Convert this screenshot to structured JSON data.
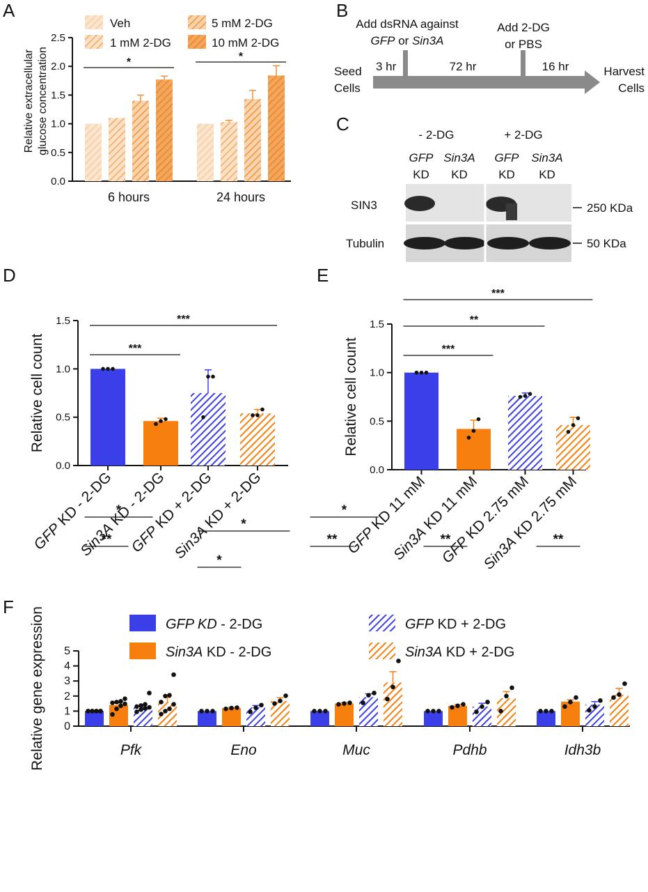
{
  "panels": {
    "a": "A",
    "b": "B",
    "c": "C",
    "d": "D",
    "e": "E",
    "f": "F"
  },
  "colors": {
    "orange_light": "#f6cfa4",
    "orange_mid": "#f3b070",
    "orange_dark": "#ef9b4a",
    "orange": "#f77f0e",
    "blue": "#3b3fe8",
    "gray": "#8a8a8a"
  },
  "chart_data": [
    {
      "id": "A",
      "type": "bar",
      "ylabel": "Relative extracellular glucose concentration",
      "ylim": [
        0,
        2.5
      ],
      "yticks": [
        "0.0",
        "0.5",
        "1.0",
        "1.5",
        "2.0",
        "2.5"
      ],
      "categories": [
        "6 hours",
        "24 hours"
      ],
      "series": [
        {
          "name": "Veh",
          "values": [
            1.0,
            1.0
          ],
          "errors": [
            0,
            0
          ]
        },
        {
          "name": "1 mM 2-DG",
          "values": [
            1.1,
            1.03
          ],
          "errors": [
            0,
            0.03
          ]
        },
        {
          "name": "5 mM 2-DG",
          "values": [
            1.4,
            1.43
          ],
          "errors": [
            0.1,
            0.15
          ]
        },
        {
          "name": "10 mM 2-DG",
          "values": [
            1.77,
            1.84
          ],
          "errors": [
            0.06,
            0.17
          ]
        }
      ],
      "significance": [
        {
          "group": "6 hours",
          "label": "*"
        },
        {
          "group": "24 hours",
          "label": "*"
        }
      ]
    },
    {
      "id": "D",
      "type": "bar",
      "ylabel": "Relative cell count",
      "ylim": [
        0,
        1.5
      ],
      "yticks": [
        "0.0",
        "0.5",
        "1.0",
        "1.5"
      ],
      "categories": [
        {
          "italic": "GFP",
          "rest": " KD - 2-DG"
        },
        {
          "italic": "Sin3A",
          "rest": " KD - 2-DG"
        },
        {
          "italic": "GFP",
          "rest": " KD + 2-DG"
        },
        {
          "italic": "Sin3A",
          "rest": " KD + 2-DG"
        }
      ],
      "values": [
        1.0,
        0.46,
        0.75,
        0.54
      ],
      "errors": [
        0,
        0.03,
        0.24,
        0.04
      ],
      "points": [
        [
          1.0,
          1.0,
          1.0
        ],
        [
          0.43,
          0.46,
          0.48
        ],
        [
          0.5,
          0.92,
          0.92
        ],
        [
          0.52,
          0.52,
          0.58
        ]
      ],
      "significance": [
        {
          "from": 0,
          "to": 1,
          "label": "***"
        },
        {
          "from": 0,
          "to": 3,
          "label": "***"
        }
      ]
    },
    {
      "id": "E",
      "type": "bar",
      "ylabel": "Relative cell count",
      "ylim": [
        0,
        1.5
      ],
      "yticks": [
        "0.0",
        "0.5",
        "1.0",
        "1.5"
      ],
      "categories": [
        {
          "italic": "GFP",
          "rest": " KD 11 mM"
        },
        {
          "italic": "Sin3A",
          "rest": " KD 11 mM"
        },
        {
          "italic": "GFP",
          "rest": " KD 2.75 mM"
        },
        {
          "italic": "Sin3A",
          "rest": " KD 2.75 mM"
        }
      ],
      "values": [
        1.0,
        0.42,
        0.76,
        0.46
      ],
      "errors": [
        0,
        0.09,
        0.03,
        0.08
      ],
      "points": [
        [
          1.0,
          1.0,
          1.0
        ],
        [
          0.33,
          0.4,
          0.52
        ],
        [
          0.75,
          0.76,
          0.78
        ],
        [
          0.39,
          0.46,
          0.53
        ]
      ],
      "significance": [
        {
          "from": 0,
          "to": 1,
          "label": "***"
        },
        {
          "from": 0,
          "to": 2,
          "label": "**"
        },
        {
          "from": 0,
          "to": 3,
          "label": "***"
        }
      ]
    },
    {
      "id": "F",
      "type": "bar",
      "ylabel": "Relative gene expression",
      "ylim": [
        0,
        5
      ],
      "yticks": [
        "0",
        "1",
        "2",
        "3",
        "4",
        "5"
      ],
      "categories": [
        "Pfk",
        "Eno",
        "Muc",
        "Pdhb",
        "Idh3b"
      ],
      "legend": [
        {
          "italic": "GFP KD",
          "rest": " - 2-DG"
        },
        {
          "italic": "Sin3A",
          "rest": " KD - 2-DG"
        },
        {
          "italic": "GFP",
          "rest": " KD + 2-DG"
        },
        {
          "italic": "Sin3A",
          "rest": " KD + 2-DG"
        }
      ],
      "series": [
        {
          "name": "GFP KD - 2-DG",
          "values": [
            1.0,
            1.0,
            1.0,
            1.0,
            1.0
          ],
          "errors": [
            0,
            0,
            0,
            0,
            0
          ]
        },
        {
          "name": "Sin3A KD - 2-DG",
          "values": [
            1.4,
            1.2,
            1.5,
            1.35,
            1.63
          ],
          "errors": [
            0.15,
            0.05,
            0.07,
            0.08,
            0.12
          ]
        },
        {
          "name": "GFP KD + 2-DG",
          "values": [
            1.3,
            1.24,
            1.93,
            1.3,
            1.43
          ],
          "errors": [
            0.13,
            0.13,
            0.22,
            0.22,
            0.2
          ]
        },
        {
          "name": "Sin3A KD + 2-DG",
          "values": [
            1.6,
            1.67,
            2.9,
            1.85,
            2.08
          ],
          "errors": [
            0.3,
            0.22,
            0.72,
            0.45,
            0.43
          ]
        }
      ],
      "points": [
        [
          [
            1,
            1,
            1,
            1,
            1,
            1,
            1,
            1
          ],
          [
            1,
            1,
            1
          ],
          [
            1,
            1,
            1
          ],
          [
            1,
            1,
            1
          ],
          [
            1,
            1,
            1
          ]
        ],
        [
          [
            0.78,
            1.15,
            1.35,
            1.48,
            1.55,
            1.6,
            1.65,
            1.82
          ],
          [
            1.15,
            1.2,
            1.23
          ],
          [
            1.45,
            1.5,
            1.55
          ],
          [
            1.25,
            1.35,
            1.45
          ],
          [
            1.3,
            1.6,
            1.9
          ]
        ],
        [
          [
            0.95,
            1.1,
            1.18,
            1.25,
            1.3,
            1.37,
            1.45,
            2.2
          ],
          [
            0.95,
            1.22,
            1.4
          ],
          [
            1.55,
            2.05,
            2.2
          ],
          [
            0.95,
            1.3,
            1.6
          ],
          [
            1.05,
            1.3,
            1.7
          ]
        ],
        [
          [
            0.8,
            1.0,
            1.15,
            1.45,
            1.6,
            2.0,
            2.05,
            3.42
          ],
          [
            1.5,
            1.68,
            2.02
          ],
          [
            1.8,
            2.6,
            4.33
          ],
          [
            1.0,
            2.0,
            2.55
          ],
          [
            1.9,
            2.1,
            2.82
          ]
        ]
      ],
      "significance": [
        {
          "group": "Pfk",
          "from": 0,
          "to": 1,
          "label": "**"
        },
        {
          "group": "Pfk",
          "from": 0,
          "to": 2,
          "label": "*"
        },
        {
          "group": "Eno",
          "from": 0,
          "to": 1,
          "label": "*"
        },
        {
          "group": "Eno",
          "from": 0,
          "to": 3,
          "label": "*"
        },
        {
          "group": "Muc",
          "from": 0,
          "to": 1,
          "label": "**"
        },
        {
          "group": "Muc",
          "from": 0,
          "to": 2,
          "label": "*"
        },
        {
          "group": "Pdhb",
          "from": 0,
          "to": 1,
          "label": "**"
        },
        {
          "group": "Idh3b",
          "from": 0,
          "to": 1,
          "label": "**"
        }
      ]
    }
  ],
  "diagram": {
    "step1_line1": "Add dsRNA against",
    "step1_italic_a": "GFP",
    "step1_or": " or ",
    "step1_italic_b": "Sin3A",
    "step2_line1": "Add 2-DG",
    "step2_line2": "or PBS",
    "seed_line1": "Seed",
    "seed_line2": "Cells",
    "harvest_line1": "Harvest",
    "harvest_line2": "Cells",
    "t1": "3 hr",
    "t2": "72 hr",
    "t3": "16 hr"
  },
  "blot": {
    "cond_minus": "- 2-DG",
    "cond_plus": "+ 2-DG",
    "lanes": [
      {
        "italic": "GFP",
        "kd": "KD"
      },
      {
        "italic": "Sin3A",
        "kd": "KD"
      },
      {
        "italic": "GFP",
        "kd": "KD"
      },
      {
        "italic": "Sin3A",
        "kd": "KD"
      }
    ],
    "row1": "SIN3",
    "row2": "Tubulin",
    "mw1": "250 KDa",
    "mw2": "50 KDa"
  }
}
